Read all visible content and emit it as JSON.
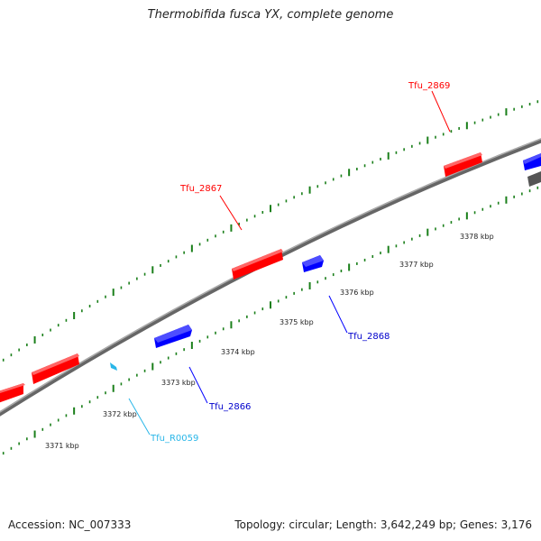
{
  "title": "Thermobifida fusca YX, complete genome",
  "footer": {
    "accession": "Accession: NC_007333",
    "summary": "Topology: circular; Length: 3,642,249 bp; Genes: 3,176"
  },
  "colors": {
    "forward_gene": "#ff0000",
    "reverse_gene": "#0000ff",
    "rna_gene": "#29b6e8",
    "backbone": "#888888",
    "tick_mark": "#1a7f1a"
  },
  "scale_ticks": [
    {
      "label": "3371 kbp"
    },
    {
      "label": "3372 kbp"
    },
    {
      "label": "3373 kbp"
    },
    {
      "label": "3374 kbp"
    },
    {
      "label": "3375 kbp"
    },
    {
      "label": "3376 kbp"
    },
    {
      "label": "3377 kbp"
    },
    {
      "label": "3378 kbp"
    }
  ],
  "genes": [
    {
      "strand": "forward",
      "name": ""
    },
    {
      "strand": "forward",
      "name": ""
    },
    {
      "strand": "forward",
      "name": "Tfu_2867"
    },
    {
      "strand": "forward",
      "name": "Tfu_2869"
    },
    {
      "strand": "reverse",
      "name": "Tfu_2866"
    },
    {
      "strand": "reverse",
      "name": "Tfu_2868"
    },
    {
      "strand": "reverse",
      "name": ""
    },
    {
      "strand": "rna",
      "name": "Tfu_R0059"
    },
    {
      "strand": "other",
      "name": ""
    }
  ]
}
